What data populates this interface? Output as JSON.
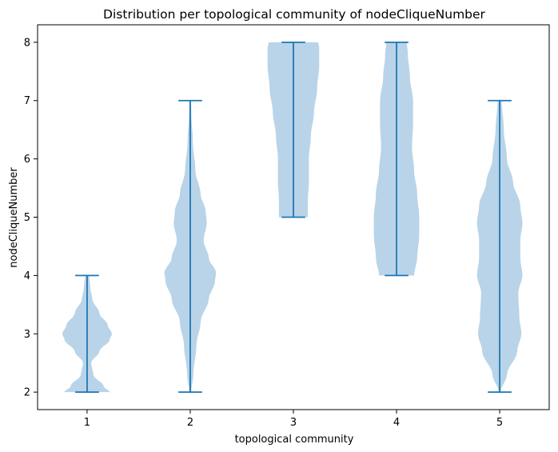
{
  "chart_data": {
    "type": "violin",
    "title": "Distribution per topological community of nodeCliqueNumber",
    "xlabel": "topological community",
    "ylabel": "nodeCliqueNumber",
    "categories": [
      "1",
      "2",
      "3",
      "4",
      "5"
    ],
    "x_ticks": [
      1,
      2,
      3,
      4,
      5
    ],
    "y_ticks": [
      2,
      3,
      4,
      5,
      6,
      7,
      8
    ],
    "xlim": [
      0.52,
      5.48
    ],
    "ylim": [
      1.7,
      8.3
    ],
    "grid": false,
    "colors": {
      "body": "#b9d4e8",
      "line": "#1f77b4"
    },
    "violins": [
      {
        "category": "1",
        "min": 2,
        "max": 4,
        "profile": [
          [
            2.0,
            0.22
          ],
          [
            2.1,
            0.16
          ],
          [
            2.3,
            0.06
          ],
          [
            2.5,
            0.04
          ],
          [
            2.7,
            0.12
          ],
          [
            2.9,
            0.22
          ],
          [
            3.0,
            0.24
          ],
          [
            3.15,
            0.2
          ],
          [
            3.35,
            0.12
          ],
          [
            3.6,
            0.05
          ],
          [
            3.8,
            0.03
          ],
          [
            4.0,
            0.02
          ]
        ]
      },
      {
        "category": "2",
        "min": 2,
        "max": 7,
        "profile": [
          [
            2.0,
            0.01
          ],
          [
            2.3,
            0.03
          ],
          [
            2.8,
            0.06
          ],
          [
            3.2,
            0.1
          ],
          [
            3.6,
            0.18
          ],
          [
            3.9,
            0.24
          ],
          [
            4.05,
            0.25
          ],
          [
            4.3,
            0.18
          ],
          [
            4.6,
            0.13
          ],
          [
            4.9,
            0.16
          ],
          [
            5.1,
            0.15
          ],
          [
            5.4,
            0.1
          ],
          [
            5.8,
            0.05
          ],
          [
            6.3,
            0.025
          ],
          [
            6.8,
            0.01
          ],
          [
            7.0,
            0.008
          ]
        ]
      },
      {
        "category": "3",
        "min": 5,
        "max": 8,
        "profile": [
          [
            5.0,
            0.14
          ],
          [
            5.3,
            0.14
          ],
          [
            5.6,
            0.15
          ],
          [
            6.0,
            0.15
          ],
          [
            6.4,
            0.17
          ],
          [
            6.8,
            0.2
          ],
          [
            7.2,
            0.23
          ],
          [
            7.6,
            0.25
          ],
          [
            7.9,
            0.25
          ],
          [
            8.0,
            0.24
          ]
        ]
      },
      {
        "category": "4",
        "min": 4,
        "max": 8,
        "profile": [
          [
            4.0,
            0.17
          ],
          [
            4.3,
            0.2
          ],
          [
            4.7,
            0.22
          ],
          [
            5.0,
            0.22
          ],
          [
            5.4,
            0.2
          ],
          [
            5.8,
            0.17
          ],
          [
            6.2,
            0.15
          ],
          [
            6.6,
            0.16
          ],
          [
            7.0,
            0.16
          ],
          [
            7.4,
            0.13
          ],
          [
            7.8,
            0.11
          ],
          [
            8.0,
            0.1
          ]
        ]
      },
      {
        "category": "5",
        "min": 2,
        "max": 7,
        "profile": [
          [
            2.0,
            0.01
          ],
          [
            2.3,
            0.07
          ],
          [
            2.7,
            0.17
          ],
          [
            3.0,
            0.21
          ],
          [
            3.3,
            0.19
          ],
          [
            3.7,
            0.18
          ],
          [
            4.0,
            0.22
          ],
          [
            4.3,
            0.2
          ],
          [
            4.6,
            0.2
          ],
          [
            4.9,
            0.22
          ],
          [
            5.2,
            0.2
          ],
          [
            5.6,
            0.13
          ],
          [
            6.0,
            0.07
          ],
          [
            6.5,
            0.04
          ],
          [
            7.0,
            0.02
          ]
        ]
      }
    ]
  }
}
